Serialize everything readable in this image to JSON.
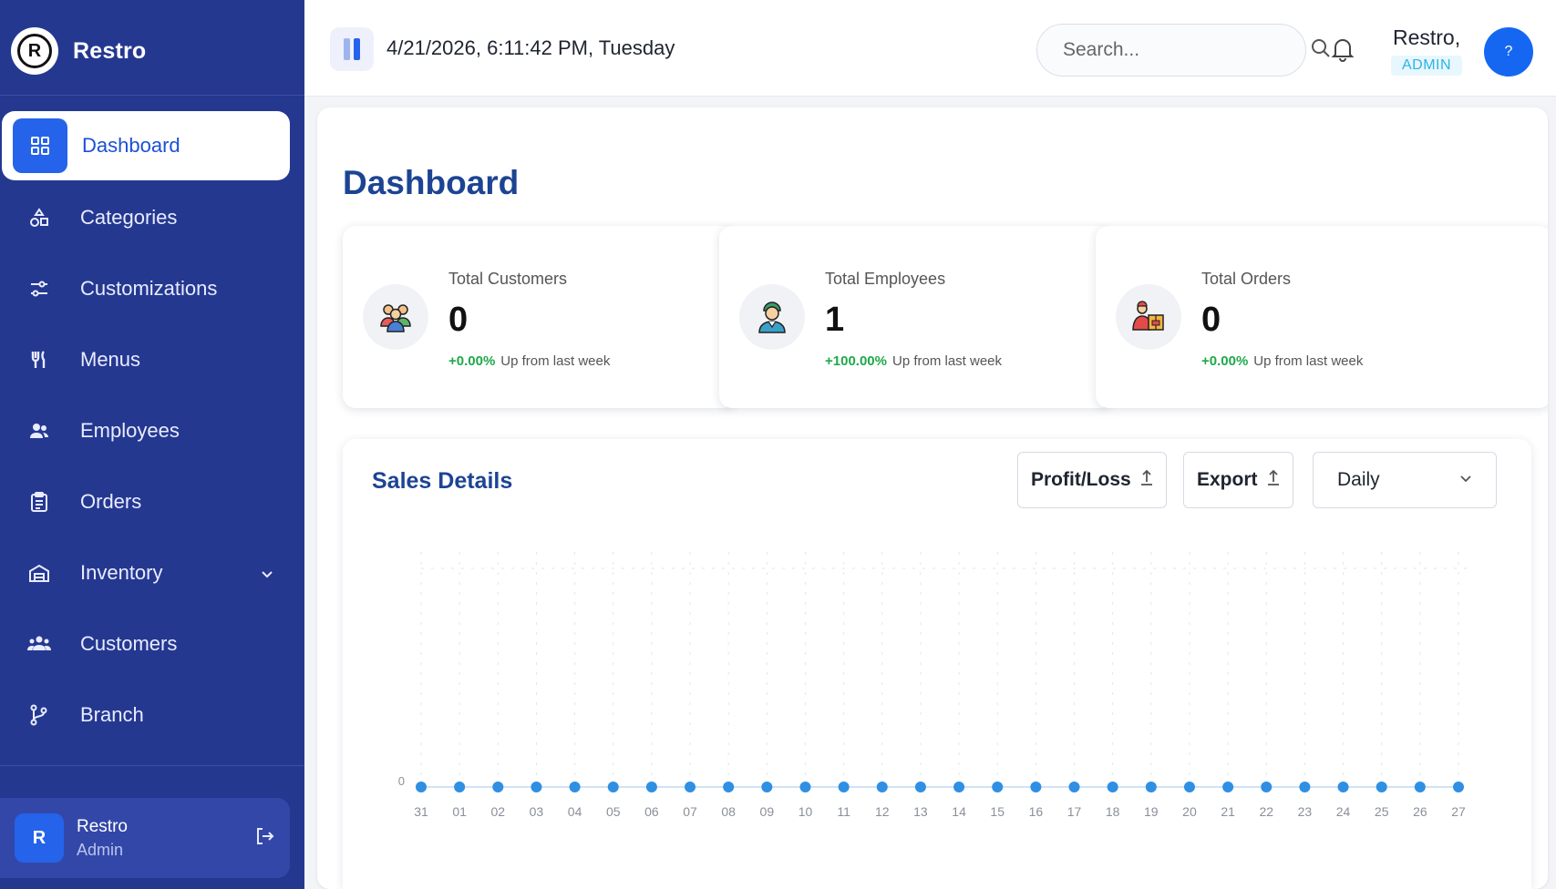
{
  "app": {
    "name": "Restro",
    "logo_letter": "R"
  },
  "sidebar": {
    "items": [
      {
        "label": "Dashboard",
        "icon": "dashboard-icon",
        "active": true
      },
      {
        "label": "Categories",
        "icon": "categories-icon"
      },
      {
        "label": "Customizations",
        "icon": "sliders-icon"
      },
      {
        "label": "Menus",
        "icon": "fork-knife-icon"
      },
      {
        "label": "Employees",
        "icon": "employees-icon"
      },
      {
        "label": "Orders",
        "icon": "clipboard-icon"
      },
      {
        "label": "Inventory",
        "icon": "warehouse-icon",
        "has_submenu": true
      },
      {
        "label": "Customers",
        "icon": "customers-icon"
      },
      {
        "label": "Branch",
        "icon": "branch-icon"
      }
    ],
    "user": {
      "initial": "R",
      "name": "Restro",
      "role": "Admin"
    }
  },
  "header": {
    "datetime": "4/21/2026, 6:11:42 PM, Tuesday",
    "search_placeholder": "Search...",
    "user_name": "Restro,",
    "user_role": "ADMIN",
    "avatar_text": "?"
  },
  "page": {
    "title": "Dashboard"
  },
  "stats": [
    {
      "title": "Total Customers",
      "value": "0",
      "change": "+0.00%",
      "change_text": "Up from last week",
      "icon": "customers-group-icon"
    },
    {
      "title": "Total Employees",
      "value": "1",
      "change": "+100.00%",
      "change_text": "Up from last week",
      "icon": "employee-person-icon"
    },
    {
      "title": "Total Orders",
      "value": "0",
      "change": "+0.00%",
      "change_text": "Up from last week",
      "icon": "delivery-orders-icon"
    }
  ],
  "sales": {
    "title": "Sales Details",
    "profit_loss_label": "Profit/Loss",
    "export_label": "Export",
    "period_selected": "Daily"
  },
  "colors": {
    "sidebar": "#253890",
    "accent": "#2563eb",
    "title": "#1d4493",
    "positive": "#1fa84a",
    "point": "#2f8fe3"
  },
  "chart_data": {
    "type": "line",
    "categories": [
      "31",
      "01",
      "02",
      "03",
      "04",
      "05",
      "06",
      "07",
      "08",
      "09",
      "10",
      "11",
      "12",
      "13",
      "14",
      "15",
      "16",
      "17",
      "18",
      "19",
      "20",
      "21",
      "22",
      "23",
      "24",
      "25",
      "26",
      "27"
    ],
    "values": [
      0,
      0,
      0,
      0,
      0,
      0,
      0,
      0,
      0,
      0,
      0,
      0,
      0,
      0,
      0,
      0,
      0,
      0,
      0,
      0,
      0,
      0,
      0,
      0,
      0,
      0,
      0,
      0
    ],
    "y_ticks": [
      "0"
    ],
    "grid": true,
    "xlabel": "",
    "ylabel": ""
  }
}
